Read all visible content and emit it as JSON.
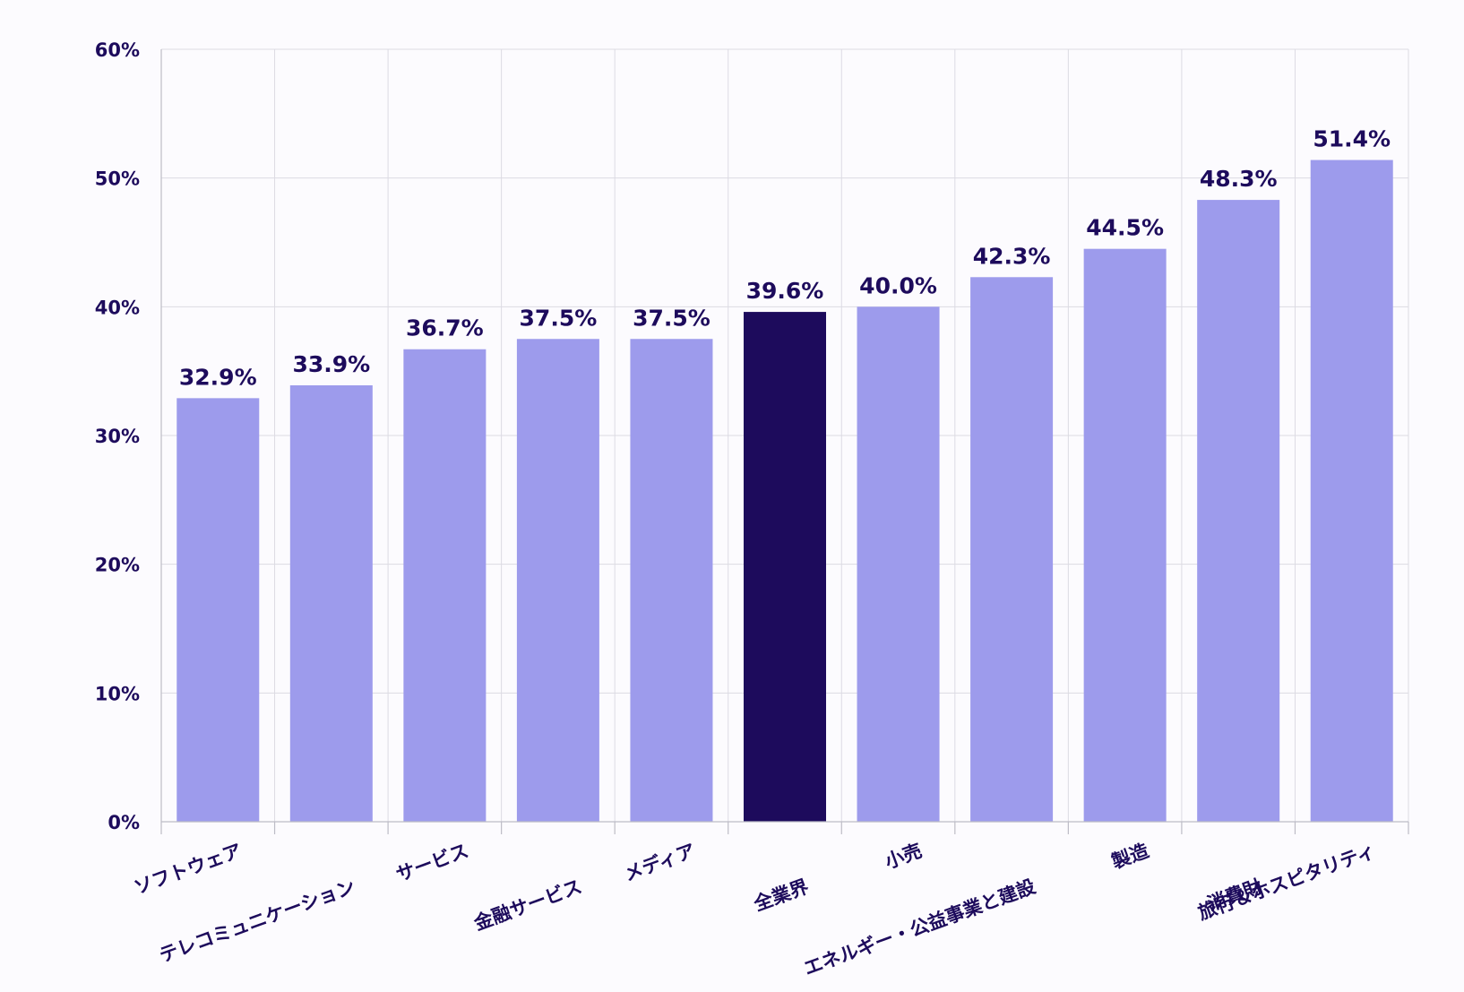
{
  "chart_data": {
    "type": "bar",
    "title": "",
    "xlabel": "",
    "ylabel": "",
    "ylim": [
      0,
      60
    ],
    "yticks": [
      0,
      10,
      20,
      30,
      40,
      50,
      60
    ],
    "ytick_labels": [
      "0%",
      "10%",
      "20%",
      "30%",
      "40%",
      "50%",
      "60%"
    ],
    "grid": true,
    "categories": [
      "ソフトウェア",
      "テレコミュニケーション",
      "サービス",
      "金融サービス",
      "メディア",
      "全業界",
      "小売",
      "エネルギー・公益事業と建設",
      "製造",
      "消費財",
      "旅行＆ホスピタリティ"
    ],
    "values": [
      32.9,
      33.9,
      36.7,
      37.5,
      37.5,
      39.6,
      40.0,
      42.3,
      44.5,
      48.3,
      51.4
    ],
    "value_labels": [
      "32.9%",
      "33.9%",
      "36.7%",
      "37.5%",
      "37.5%",
      "39.6%",
      "40.0%",
      "42.3%",
      "44.5%",
      "48.3%",
      "51.4%"
    ],
    "highlight_index": 5,
    "colors": {
      "bar": "#9d9bec",
      "highlight": "#1d0b5c",
      "text": "#1d0b5c",
      "grid": "#dcdbe3",
      "background": "#fcfbfe"
    }
  }
}
